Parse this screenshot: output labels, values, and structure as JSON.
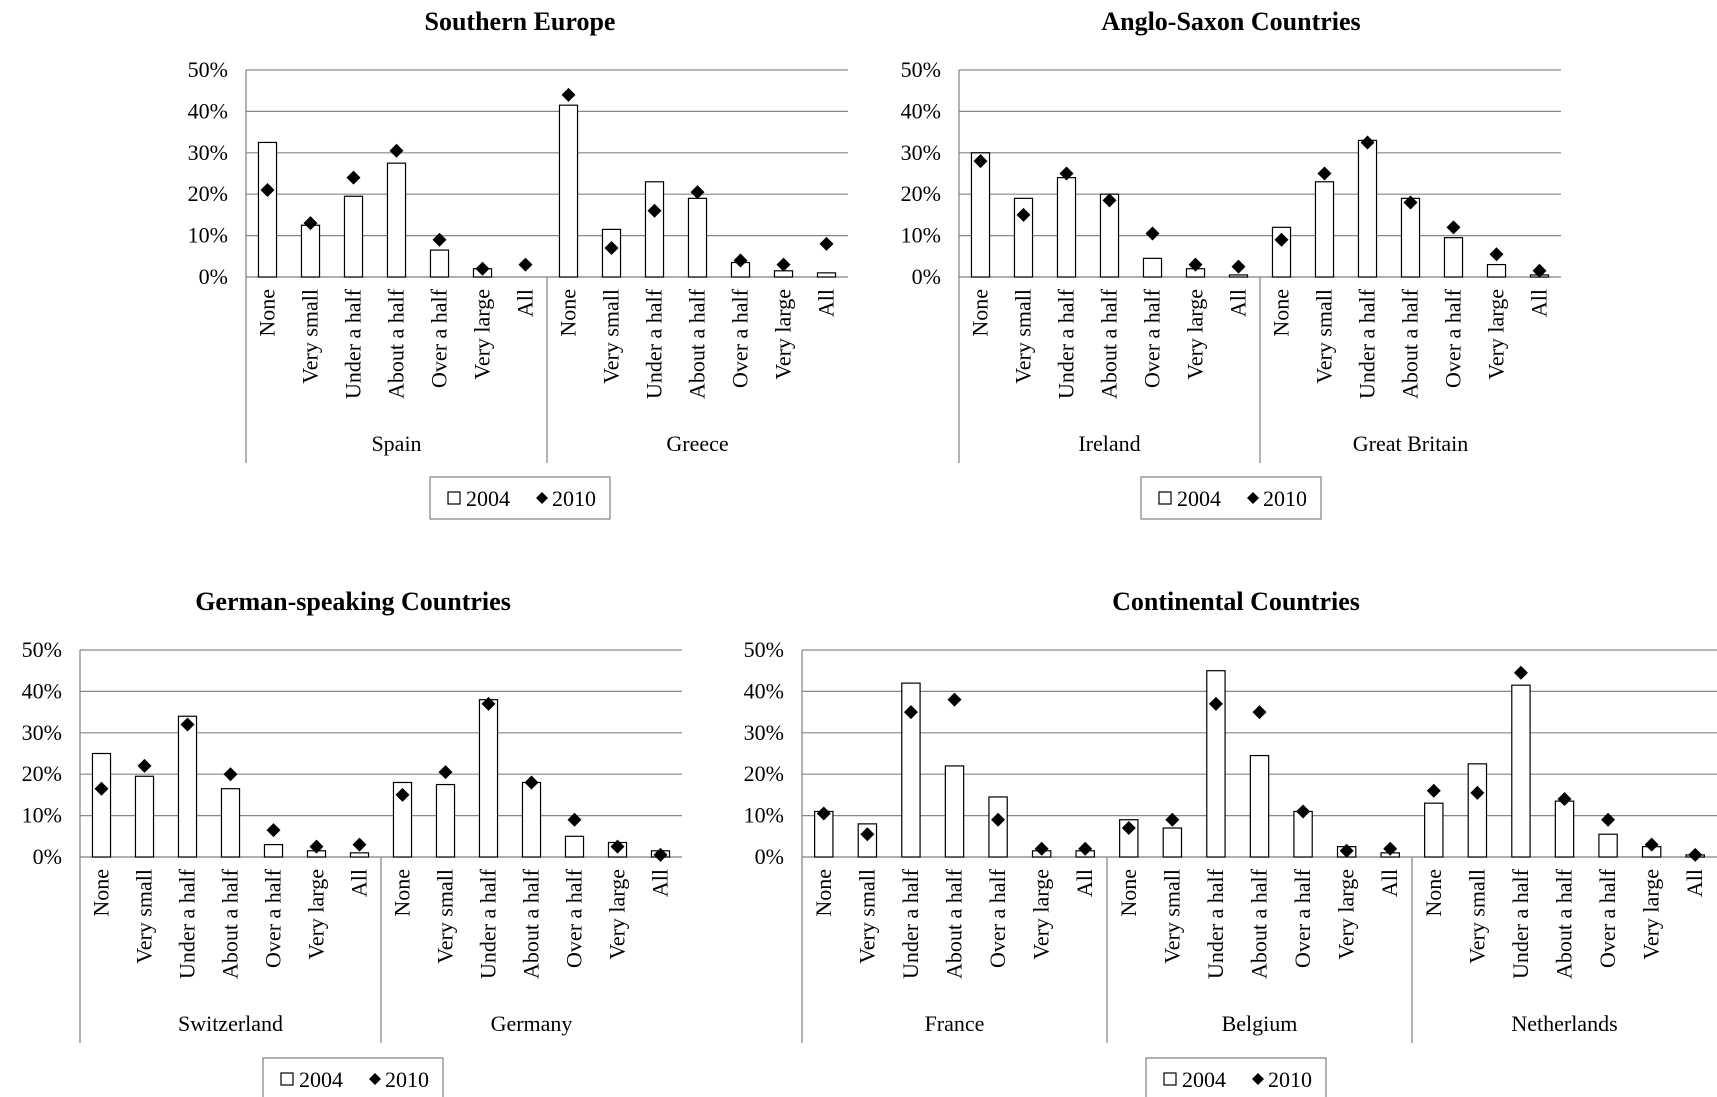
{
  "chart_data": [
    {
      "type": "bar",
      "title": "Southern Europe",
      "categories": [
        "None",
        "Very small",
        "Under a half",
        "About a half",
        "Over a half",
        "Very large",
        "All"
      ],
      "groups": [
        {
          "name": "Spain",
          "s2004": [
            32.5,
            12.5,
            19.5,
            27.5,
            6.5,
            2,
            0
          ],
          "s2010": [
            21,
            13,
            24,
            30.5,
            9,
            2,
            3
          ]
        },
        {
          "name": "Greece",
          "s2004": [
            41.5,
            11.5,
            23,
            19,
            3.5,
            1.5,
            1
          ],
          "s2010": [
            44,
            7,
            16,
            20.5,
            4,
            3,
            8
          ]
        }
      ],
      "series": [
        {
          "name": "2004",
          "marker": "bar"
        },
        {
          "name": "2010",
          "marker": "diamond"
        }
      ],
      "yticks": [
        "0%",
        "10%",
        "20%",
        "30%",
        "40%",
        "50%"
      ],
      "ylim": [
        0,
        50
      ],
      "grid": true,
      "legend": "bottom"
    },
    {
      "type": "bar",
      "title": "Anglo-Saxon Countries",
      "categories": [
        "None",
        "Very small",
        "Under a half",
        "About a half",
        "Over a half",
        "Very large",
        "All"
      ],
      "groups": [
        {
          "name": "Ireland",
          "s2004": [
            30,
            19,
            24,
            20,
            4.5,
            2,
            0.5
          ],
          "s2010": [
            28,
            15,
            25,
            18.5,
            10.5,
            3,
            2.5
          ]
        },
        {
          "name": "Great Britain",
          "s2004": [
            12,
            23,
            33,
            19,
            9.5,
            3,
            0.5
          ],
          "s2010": [
            9,
            25,
            32.5,
            18,
            12,
            5.5,
            1.5
          ]
        }
      ],
      "series": [
        {
          "name": "2004",
          "marker": "bar"
        },
        {
          "name": "2010",
          "marker": "diamond"
        }
      ],
      "yticks": [
        "0%",
        "10%",
        "20%",
        "30%",
        "40%",
        "50%"
      ],
      "ylim": [
        0,
        50
      ],
      "grid": true,
      "legend": "bottom"
    },
    {
      "type": "bar",
      "title": "German-speaking Countries",
      "categories": [
        "None",
        "Very small",
        "Under a half",
        "About a half",
        "Over a half",
        "Very large",
        "All"
      ],
      "groups": [
        {
          "name": "Switzerland",
          "s2004": [
            25,
            19.5,
            34,
            16.5,
            3,
            1.5,
            1
          ],
          "s2010": [
            16.5,
            22,
            32,
            20,
            6.5,
            2.5,
            3
          ]
        },
        {
          "name": "Germany",
          "s2004": [
            18,
            17.5,
            38,
            18,
            5,
            3.5,
            1.5
          ],
          "s2010": [
            15,
            20.5,
            37,
            18,
            9,
            2.5,
            0.5
          ]
        }
      ],
      "series": [
        {
          "name": "2004",
          "marker": "bar"
        },
        {
          "name": "2010",
          "marker": "diamond"
        }
      ],
      "yticks": [
        "0%",
        "10%",
        "20%",
        "30%",
        "40%",
        "50%"
      ],
      "ylim": [
        0,
        50
      ],
      "grid": true,
      "legend": "bottom"
    },
    {
      "type": "bar",
      "title": "Continental Countries",
      "categories": [
        "None",
        "Very small",
        "Under a half",
        "About a half",
        "Over a half",
        "Very large",
        "All"
      ],
      "groups": [
        {
          "name": "France",
          "s2004": [
            11,
            8,
            42,
            22,
            14.5,
            1.5,
            1.5
          ],
          "s2010": [
            10.5,
            5.5,
            35,
            38,
            9,
            2,
            2
          ]
        },
        {
          "name": "Belgium",
          "s2004": [
            9,
            7,
            45,
            24.5,
            11,
            2.5,
            1
          ],
          "s2010": [
            7,
            9,
            37,
            35,
            11,
            1.5,
            2
          ]
        },
        {
          "name": "Netherlands",
          "s2004": [
            13,
            22.5,
            41.5,
            13.5,
            5.5,
            2.5,
            0.5
          ],
          "s2010": [
            16,
            15.5,
            44.5,
            14,
            9,
            3,
            0.5
          ]
        }
      ],
      "series": [
        {
          "name": "2004",
          "marker": "bar"
        },
        {
          "name": "2010",
          "marker": "diamond"
        }
      ],
      "yticks": [
        "0%",
        "10%",
        "20%",
        "30%",
        "40%",
        "50%"
      ],
      "ylim": [
        0,
        50
      ],
      "grid": true,
      "legend": "bottom"
    }
  ],
  "colors": {
    "bar_fill": "#ffffff",
    "bar_stroke": "#000000",
    "marker": "#000000",
    "grid": "#878787",
    "axis": "#808080",
    "text": "#000000"
  }
}
